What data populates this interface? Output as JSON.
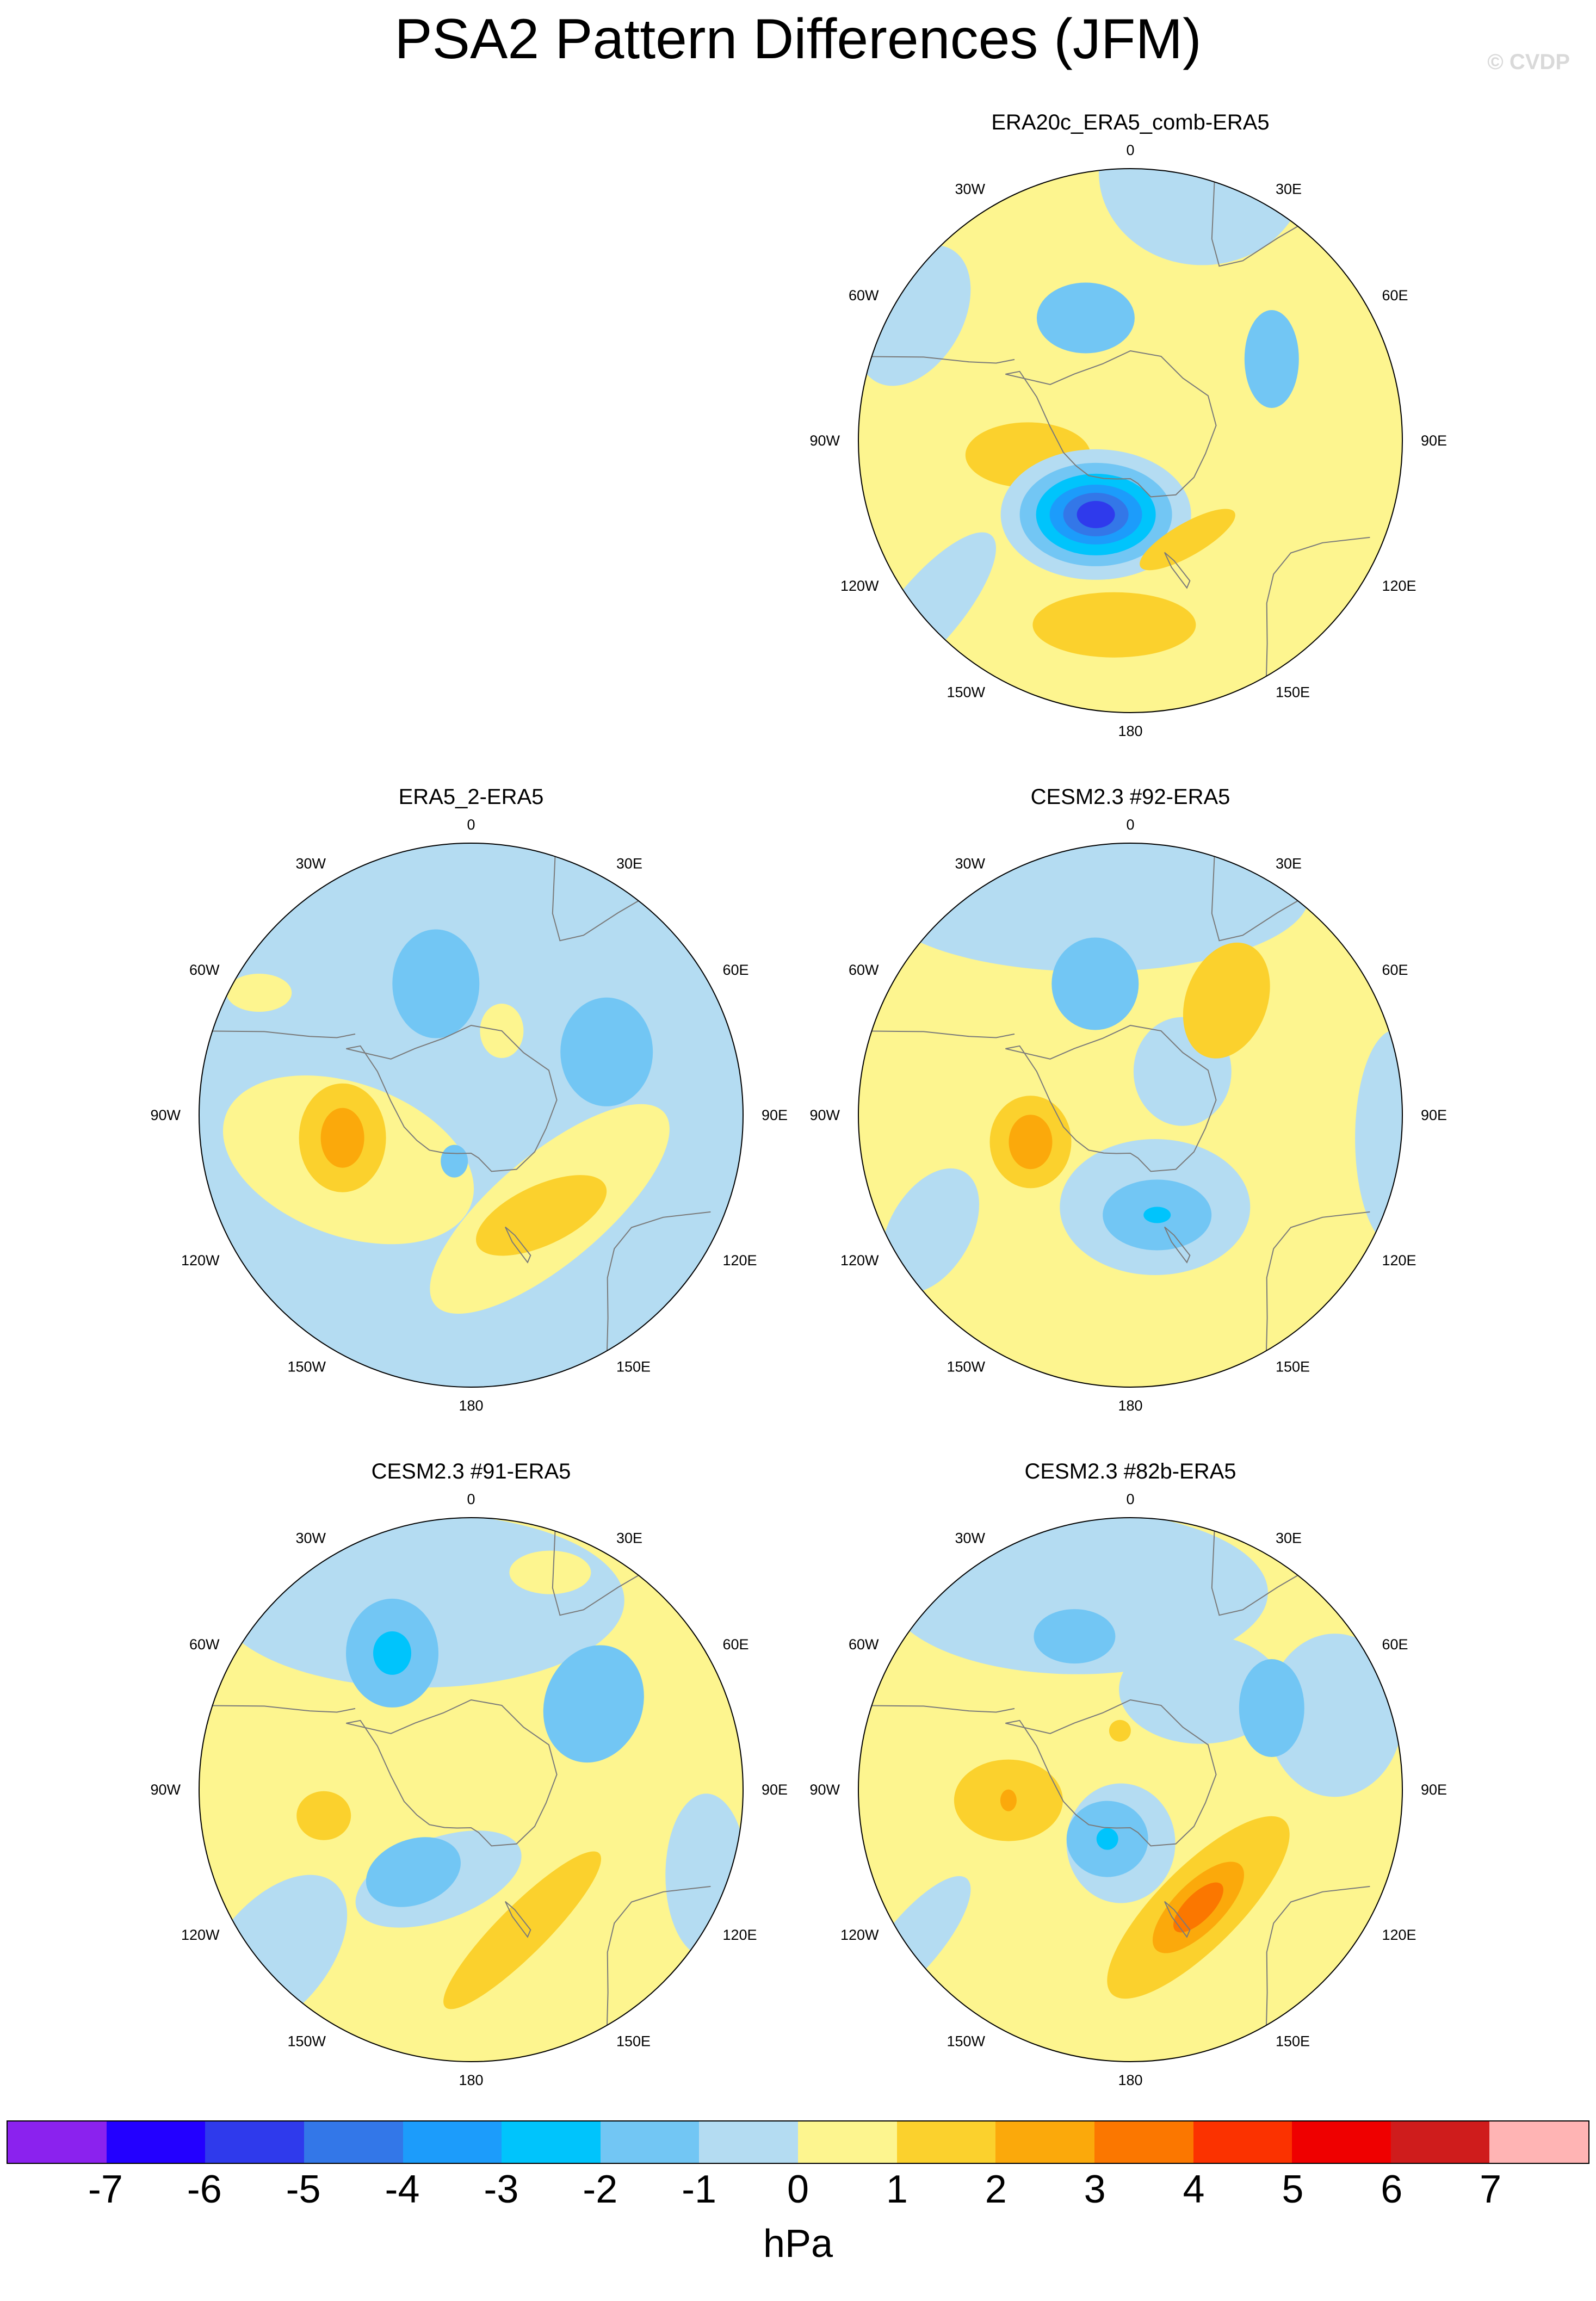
{
  "title": "PSA2 Pattern Differences (JFM)",
  "credit": "© CVDP",
  "lon_labels": [
    "0",
    "30E",
    "60E",
    "90E",
    "120E",
    "150E",
    "180",
    "150W",
    "120W",
    "90W",
    "60W",
    "30W"
  ],
  "colors": {
    "ocean_blue": "#b4dcf2",
    "light_yellow": "#fdf58f",
    "coast": "#7a7a7a"
  },
  "chart_data": {
    "type": "heatmap",
    "projection": "south-polar-stereographic",
    "units": "hPa",
    "colorbar": {
      "labels": [
        "-7",
        "-6",
        "-5",
        "-4",
        "-3",
        "-2",
        "-1",
        "0",
        "1",
        "2",
        "3",
        "4",
        "5",
        "6",
        "7"
      ],
      "colors": [
        "#8b22ee",
        "#2300ff",
        "#2f3aec",
        "#3377e8",
        "#1c9cfb",
        "#00c4fc",
        "#72c6f4",
        "#b4dcf2",
        "#fdf58f",
        "#fbd12d",
        "#fba90b",
        "#fb7700",
        "#fb3200",
        "#ef0000",
        "#cf1c1c",
        "#ffb4b4"
      ]
    },
    "panels": [
      {
        "id": "era20c",
        "title": "ERA20c_ERA5_comb-ERA5",
        "base": 0.5,
        "features": [
          {
            "ang": 360,
            "r": 0.56,
            "a": 0.07,
            "b": 0.16,
            "rot": 90,
            "v": 0.5
          },
          {
            "ang": 15,
            "r": 0.75,
            "a": 0.33,
            "b": 0.22,
            "rot": 0,
            "v": 0.5
          },
          {
            "ang": 15,
            "r": 1.02,
            "a": 0.38,
            "b": 0.34,
            "rot": 0,
            "v": -0.5
          },
          {
            "ang": 340,
            "r": 0.48,
            "a": 0.18,
            "b": 0.13,
            "rot": 0,
            "v": -1.5
          },
          {
            "ang": 60,
            "r": 0.6,
            "a": 0.18,
            "b": 0.1,
            "rot": 90,
            "v": -1.5
          },
          {
            "ang": 300,
            "r": 0.92,
            "a": 0.18,
            "b": 0.28,
            "rot": 30,
            "v": -0.5
          },
          {
            "ang": 262,
            "r": 0.38,
            "a": 0.23,
            "b": 0.12,
            "rot": 0,
            "v": 1.5
          },
          {
            "ang": 205,
            "r": 0.3,
            "a": 0.35,
            "b": 0.24,
            "rot": 0,
            "v": -0.5
          },
          {
            "ang": 205,
            "r": 0.3,
            "a": 0.28,
            "b": 0.19,
            "rot": 0,
            "v": -1.5
          },
          {
            "ang": 205,
            "r": 0.3,
            "a": 0.22,
            "b": 0.15,
            "rot": 0,
            "v": -2.5
          },
          {
            "ang": 205,
            "r": 0.3,
            "a": 0.17,
            "b": 0.11,
            "rot": 0,
            "v": -3.5
          },
          {
            "ang": 205,
            "r": 0.3,
            "a": 0.12,
            "b": 0.08,
            "rot": 0,
            "v": -4.5
          },
          {
            "ang": 205,
            "r": 0.3,
            "a": 0.07,
            "b": 0.05,
            "rot": 0,
            "v": -5.5
          },
          {
            "ang": 185,
            "r": 0.68,
            "a": 0.3,
            "b": 0.12,
            "rot": 0,
            "v": 1.5
          },
          {
            "ang": 150,
            "r": 0.42,
            "a": 0.2,
            "b": 0.06,
            "rot": -30,
            "v": 1.5
          },
          {
            "ang": 230,
            "r": 0.97,
            "a": 0.12,
            "b": 0.36,
            "rot": 40,
            "v": -0.5
          },
          {
            "ang": 130,
            "r": 0.82,
            "a": 0.2,
            "b": 0.24,
            "rot": 0,
            "v": 0.5
          }
        ]
      },
      {
        "id": "era5-2",
        "title": "ERA5_2-ERA5",
        "base": -0.5,
        "features": [
          {
            "ang": 250,
            "r": 0.48,
            "a": 0.48,
            "b": 0.28,
            "rot": 20,
            "v": 0.5
          },
          {
            "ang": 140,
            "r": 0.45,
            "a": 0.55,
            "b": 0.2,
            "rot": -40,
            "v": 0.5
          },
          {
            "ang": 260,
            "r": 0.48,
            "a": 0.16,
            "b": 0.2,
            "rot": 0,
            "v": 1.5
          },
          {
            "ang": 260,
            "r": 0.48,
            "a": 0.08,
            "b": 0.11,
            "rot": 0,
            "v": 2.5
          },
          {
            "ang": 145,
            "r": 0.45,
            "a": 0.26,
            "b": 0.11,
            "rot": -25,
            "v": 1.5
          },
          {
            "ang": 345,
            "r": 0.5,
            "a": 0.16,
            "b": 0.2,
            "rot": 0,
            "v": -1.5
          },
          {
            "ang": 65,
            "r": 0.55,
            "a": 0.17,
            "b": 0.2,
            "rot": 0,
            "v": -1.5
          },
          {
            "ang": 20,
            "r": 0.33,
            "a": 0.08,
            "b": 0.1,
            "rot": 0,
            "v": 0.5
          },
          {
            "ang": 300,
            "r": 0.9,
            "a": 0.12,
            "b": 0.07,
            "rot": 0,
            "v": 0.5
          },
          {
            "ang": 200,
            "r": 0.18,
            "a": 0.05,
            "b": 0.06,
            "rot": 0,
            "v": -1.5
          }
        ]
      },
      {
        "id": "cesm92",
        "title": "CESM2.3 #92-ERA5",
        "base": 0.5,
        "features": [
          {
            "ang": 350,
            "r": 0.82,
            "a": 0.8,
            "b": 0.28,
            "rot": 0,
            "v": -0.5
          },
          {
            "ang": 165,
            "r": 0.35,
            "a": 0.35,
            "b": 0.25,
            "rot": 0,
            "v": -0.5
          },
          {
            "ang": 50,
            "r": 0.25,
            "a": 0.18,
            "b": 0.2,
            "rot": 0,
            "v": -0.5
          },
          {
            "ang": 95,
            "r": 0.98,
            "a": 0.15,
            "b": 0.4,
            "rot": 0,
            "v": -0.5
          },
          {
            "ang": 240,
            "r": 0.85,
            "a": 0.15,
            "b": 0.25,
            "rot": 30,
            "v": -0.5
          },
          {
            "ang": 345,
            "r": 0.5,
            "a": 0.16,
            "b": 0.17,
            "rot": 0,
            "v": -1.5
          },
          {
            "ang": 40,
            "r": 0.55,
            "a": 0.15,
            "b": 0.22,
            "rot": 20,
            "v": 1.5
          },
          {
            "ang": 255,
            "r": 0.38,
            "a": 0.15,
            "b": 0.17,
            "rot": 0,
            "v": 1.5
          },
          {
            "ang": 255,
            "r": 0.38,
            "a": 0.08,
            "b": 0.1,
            "rot": 0,
            "v": 2.5
          },
          {
            "ang": 165,
            "r": 0.38,
            "a": 0.2,
            "b": 0.13,
            "rot": 0,
            "v": -1.5
          },
          {
            "ang": 165,
            "r": 0.38,
            "a": 0.05,
            "b": 0.03,
            "rot": 0,
            "v": -2.5
          }
        ]
      },
      {
        "id": "cesm91",
        "title": "CESM2.3 #91-ERA5",
        "base": 0.5,
        "features": [
          {
            "ang": 345,
            "r": 0.72,
            "a": 0.75,
            "b": 0.32,
            "rot": 0,
            "v": -0.5
          },
          {
            "ang": 230,
            "r": 0.95,
            "a": 0.2,
            "b": 0.35,
            "rot": 40,
            "v": -0.5
          },
          {
            "ang": 110,
            "r": 0.92,
            "a": 0.15,
            "b": 0.3,
            "rot": 0,
            "v": -0.5
          },
          {
            "ang": 200,
            "r": 0.35,
            "a": 0.32,
            "b": 0.15,
            "rot": -20,
            "v": -0.5
          },
          {
            "ang": 20,
            "r": 0.85,
            "a": 0.15,
            "b": 0.08,
            "rot": 0,
            "v": 0.5
          },
          {
            "ang": 330,
            "r": 0.58,
            "a": 0.17,
            "b": 0.2,
            "rot": 0,
            "v": -1.5
          },
          {
            "ang": 330,
            "r": 0.58,
            "a": 0.07,
            "b": 0.08,
            "rot": 0,
            "v": -2.5
          },
          {
            "ang": 55,
            "r": 0.55,
            "a": 0.18,
            "b": 0.22,
            "rot": 20,
            "v": -1.5
          },
          {
            "ang": 260,
            "r": 0.55,
            "a": 0.1,
            "b": 0.09,
            "rot": 0,
            "v": 1.5
          },
          {
            "ang": 215,
            "r": 0.37,
            "a": 0.18,
            "b": 0.12,
            "rot": -20,
            "v": -1.5
          },
          {
            "ang": 160,
            "r": 0.55,
            "a": 0.4,
            "b": 0.09,
            "rot": -45,
            "v": 1.5
          }
        ]
      },
      {
        "id": "cesm82b",
        "title": "CESM2.3 #82b-ERA5",
        "base": 0.5,
        "features": [
          {
            "ang": 345,
            "r": 0.75,
            "a": 0.7,
            "b": 0.3,
            "rot": 0,
            "v": -0.5
          },
          {
            "ang": 70,
            "r": 0.8,
            "a": 0.25,
            "b": 0.3,
            "rot": 0,
            "v": -0.5
          },
          {
            "ang": 190,
            "r": 0.2,
            "a": 0.2,
            "b": 0.22,
            "rot": 0,
            "v": -0.5
          },
          {
            "ang": 35,
            "r": 0.45,
            "a": 0.3,
            "b": 0.2,
            "rot": 0,
            "v": -0.5
          },
          {
            "ang": 235,
            "r": 0.97,
            "a": 0.1,
            "b": 0.3,
            "rot": 40,
            "v": -0.5
          },
          {
            "ang": 340,
            "r": 0.6,
            "a": 0.15,
            "b": 0.1,
            "rot": 0,
            "v": -1.5
          },
          {
            "ang": 60,
            "r": 0.6,
            "a": 0.12,
            "b": 0.18,
            "rot": 0,
            "v": -1.5
          },
          {
            "ang": 265,
            "r": 0.45,
            "a": 0.2,
            "b": 0.15,
            "rot": 0,
            "v": 1.5
          },
          {
            "ang": 265,
            "r": 0.45,
            "a": 0.03,
            "b": 0.04,
            "rot": 0,
            "v": 2.5
          },
          {
            "ang": 350,
            "r": 0.22,
            "a": 0.04,
            "b": 0.04,
            "rot": 0,
            "v": 1.5
          },
          {
            "ang": 205,
            "r": 0.2,
            "a": 0.15,
            "b": 0.14,
            "rot": 0,
            "v": -1.5
          },
          {
            "ang": 205,
            "r": 0.2,
            "a": 0.04,
            "b": 0.04,
            "rot": 0,
            "v": -2.5
          },
          {
            "ang": 150,
            "r": 0.5,
            "a": 0.45,
            "b": 0.15,
            "rot": -45,
            "v": 1.5
          },
          {
            "ang": 150,
            "r": 0.5,
            "a": 0.22,
            "b": 0.09,
            "rot": -45,
            "v": 2.5
          },
          {
            "ang": 150,
            "r": 0.5,
            "a": 0.12,
            "b": 0.05,
            "rot": -45,
            "v": 3.5
          }
        ]
      }
    ]
  }
}
